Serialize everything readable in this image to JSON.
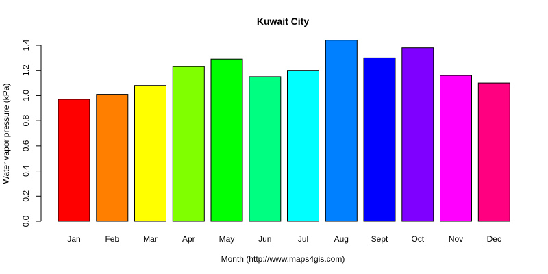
{
  "chart_data": {
    "type": "bar",
    "title": "Kuwait City",
    "xlabel": "Month (http://www.maps4gis.com)",
    "ylabel": "Water vapor pressure (kPa)",
    "categories": [
      "Jan",
      "Feb",
      "Mar",
      "Apr",
      "May",
      "Jun",
      "Jul",
      "Aug",
      "Sept",
      "Oct",
      "Nov",
      "Dec"
    ],
    "values": [
      0.97,
      1.01,
      1.08,
      1.23,
      1.29,
      1.15,
      1.2,
      1.44,
      1.3,
      1.38,
      1.16,
      1.1
    ],
    "colors": [
      "#FF0000",
      "#FF8000",
      "#FFFF00",
      "#80FF00",
      "#00FF00",
      "#00FF80",
      "#00FFFF",
      "#0080FF",
      "#0000FF",
      "#8000FF",
      "#FF00FF",
      "#FF0080"
    ],
    "yticks": [
      "0.0",
      "0.2",
      "0.4",
      "0.6",
      "0.8",
      "1.0",
      "1.2",
      "1.4"
    ],
    "ylim": [
      0,
      1.4
    ],
    "grid": false,
    "legend": "none"
  }
}
